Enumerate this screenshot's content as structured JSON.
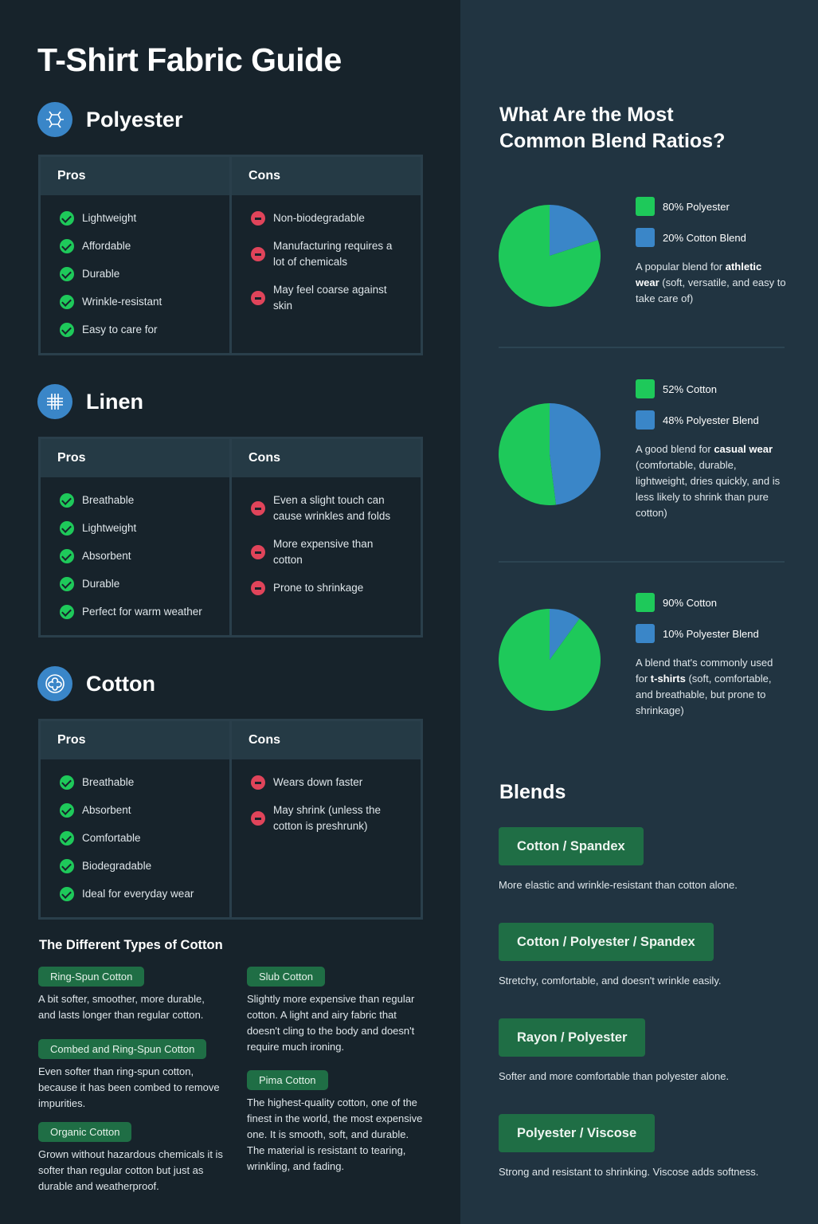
{
  "title": "T-Shirt Fabric Guide",
  "colors": {
    "green": "#1ec95a",
    "blue": "#3a86c8",
    "badge": "#1f6e45",
    "con": "#e0445a"
  },
  "sections": [
    {
      "name": "Polyester",
      "icon": "molecule-icon",
      "pros_label": "Pros",
      "cons_label": "Cons",
      "pros": [
        "Lightweight",
        "Affordable",
        "Durable",
        "Wrinkle-resistant",
        "Easy to care for"
      ],
      "cons": [
        "Non-biodegradable",
        "Manufacturing requires a lot of chemicals",
        "May feel coarse against skin"
      ]
    },
    {
      "name": "Linen",
      "icon": "weave-grid-icon",
      "pros_label": "Pros",
      "cons_label": "Cons",
      "pros": [
        "Breathable",
        "Lightweight",
        "Absorbent",
        "Durable",
        "Perfect for warm weather"
      ],
      "cons": [
        "Even a slight touch can cause wrinkles and folds",
        "More expensive than cotton",
        "Prone to shrinkage"
      ]
    },
    {
      "name": "Cotton",
      "icon": "cotton-flower-icon",
      "pros_label": "Pros",
      "cons_label": "Cons",
      "pros": [
        "Breathable",
        "Absorbent",
        "Comfortable",
        "Biodegradable",
        "Ideal for everyday wear"
      ],
      "cons": [
        "Wears down faster",
        "May shrink (unless the cotton is preshrunk)"
      ]
    }
  ],
  "cotton_types": {
    "heading": "The Different Types of Cotton",
    "items": [
      {
        "name": "Ring-Spun Cotton",
        "desc": "A bit softer, smoother, more durable, and lasts longer than regular cotton."
      },
      {
        "name": "Combed and Ring-Spun Cotton",
        "desc": "Even softer than ring-spun cotton, because it has been combed to remove impurities."
      },
      {
        "name": "Organic Cotton",
        "desc": "Grown without hazardous chemicals it is softer than regular cotton but just as durable and weatherproof."
      },
      {
        "name": "Slub Cotton",
        "desc": "Slightly more expensive than regular cotton. A light and airy fabric that doesn't cling to the body and doesn't require much ironing."
      },
      {
        "name": "Pima Cotton",
        "desc": "The highest-quality cotton, one of the finest in the world, the most expensive one. It is smooth, soft, and durable. The material is resistant to tearing, wrinkling, and fading."
      }
    ]
  },
  "ratios": {
    "heading_line1": "What Are the Most",
    "heading_line2": "Common Blend Ratios?"
  },
  "chart_data": [
    {
      "type": "pie",
      "categories": [
        "80% Polyester",
        "20% Cotton Blend"
      ],
      "values": [
        80,
        20
      ],
      "colors": [
        "#1ec95a",
        "#3a86c8"
      ],
      "desc": [
        {
          "t": "A popular blend for "
        },
        {
          "t": "athletic wear",
          "b": true
        },
        {
          "t": " (soft, versatile, and easy to take care of)"
        }
      ]
    },
    {
      "type": "pie",
      "categories": [
        "52% Cotton",
        "48% Polyester Blend"
      ],
      "values": [
        52,
        48
      ],
      "colors": [
        "#1ec95a",
        "#3a86c8"
      ],
      "desc": [
        {
          "t": "A good blend for "
        },
        {
          "t": "casual wear",
          "b": true
        },
        {
          "t": " (comfortable, durable, lightweight, dries quickly, and is less likely to shrink than pure cotton)"
        }
      ]
    },
    {
      "type": "pie",
      "categories": [
        "90% Cotton",
        "10% Polyester Blend"
      ],
      "values": [
        90,
        10
      ],
      "colors": [
        "#1ec95a",
        "#3a86c8"
      ],
      "desc": [
        {
          "t": "A blend that's commonly used for "
        },
        {
          "t": "t-shirts",
          "b": true
        },
        {
          "t": " (soft, comfortable, and breathable, but prone to shrinkage)"
        }
      ]
    }
  ],
  "blends": {
    "heading": "Blends",
    "items": [
      {
        "name": "Cotton / Spandex",
        "desc": "More elastic and wrinkle-resistant than cotton alone."
      },
      {
        "name": "Cotton / Polyester / Spandex",
        "desc": "Stretchy, comfortable, and doesn't wrinkle easily."
      },
      {
        "name": "Rayon / Polyester",
        "desc": "Softer and more comfortable than polyester alone."
      },
      {
        "name": "Polyester / Viscose",
        "desc": "Strong and resistant to shrinking. Viscose adds softness."
      }
    ]
  }
}
